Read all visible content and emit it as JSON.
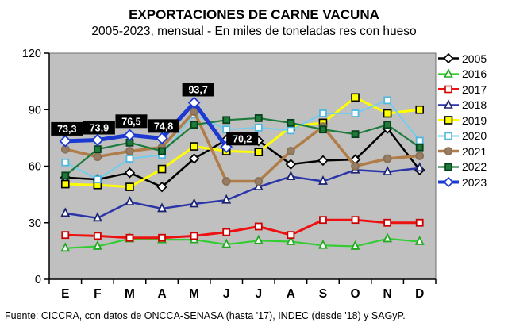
{
  "chart_data": {
    "type": "line",
    "title": "EXPORTACIONES DE CARNE VACUNA",
    "subtitle": "2005-2023, mensual - En miles de toneladas res con hueso",
    "source": "Fuente: CICCRA, con datos de ONCCA-SENASA (hasta '17), INDEC (desde '18) y SAGyP.",
    "categories": [
      "E",
      "F",
      "M",
      "A",
      "M",
      "J",
      "J",
      "A",
      "S",
      "O",
      "N",
      "D"
    ],
    "y_ticks": [
      0,
      30,
      60,
      90,
      120
    ],
    "ylim": [
      0,
      120
    ],
    "grid": false,
    "legend_position": "right",
    "plot_bg": "#c0c0c0",
    "series": [
      {
        "name": "2005",
        "color": "#000000",
        "width": 2.5,
        "marker": "diamond",
        "marker_fill": "#ffffff",
        "marker_stroke": "#000000",
        "marker_size": 4.5,
        "values": [
          54,
          53,
          56.5,
          49,
          64,
          74,
          73.5,
          61,
          63,
          63.5,
          80,
          58
        ]
      },
      {
        "name": "2016",
        "color": "#33cc33",
        "width": 2.2,
        "marker": "triangle",
        "marker_fill": "#ffffff",
        "marker_stroke": "#22aa22",
        "marker_size": 4.5,
        "values": [
          16.5,
          17.5,
          21.5,
          21,
          21,
          18.5,
          20.5,
          20,
          18,
          17.5,
          21.5,
          20
        ]
      },
      {
        "name": "2017",
        "color": "#ee1111",
        "width": 3,
        "marker": "square",
        "marker_fill": "#ffffff",
        "marker_stroke": "#cc0000",
        "marker_size": 4,
        "values": [
          23.5,
          23,
          22,
          22,
          23,
          25,
          28,
          23.5,
          31.5,
          31.5,
          30,
          30
        ]
      },
      {
        "name": "2018",
        "color": "#2b35a8",
        "width": 2.5,
        "marker": "triangle",
        "marker_fill": "#ffffff",
        "marker_stroke": "#1c2470",
        "marker_size": 4.5,
        "values": [
          35,
          32.5,
          41,
          37.5,
          40,
          42,
          49,
          54.5,
          52,
          58,
          57,
          59
        ]
      },
      {
        "name": "2019",
        "color": "#ffff00",
        "width": 3,
        "marker": "square",
        "marker_fill": "#ffff00",
        "marker_stroke": "#000000",
        "marker_size": 4.5,
        "values": [
          50.5,
          50,
          49,
          58.5,
          70.5,
          68,
          67.5,
          81,
          83,
          96.5,
          88,
          90
        ]
      },
      {
        "name": "2020",
        "color": "#74cdee",
        "width": 2,
        "marker": "square",
        "marker_fill": "#ffffff",
        "marker_stroke": "#4fb8e0",
        "marker_size": 4,
        "values": [
          62,
          53,
          64,
          66,
          87.5,
          79.5,
          80.5,
          79,
          88,
          88,
          95,
          73.5
        ]
      },
      {
        "name": "2021",
        "color": "#b07c48",
        "width": 3.5,
        "marker": "circle",
        "marker_fill": "#967d64",
        "marker_stroke": "#8a7054",
        "marker_size": 4.5,
        "values": [
          69,
          65,
          68,
          70,
          89,
          52,
          52,
          68,
          81,
          60,
          64,
          65.5
        ]
      },
      {
        "name": "2022",
        "color": "#1e7b3c",
        "width": 2.2,
        "marker": "square",
        "marker_fill": "#1e7b3c",
        "marker_stroke": "#06401c",
        "marker_size": 4,
        "values": [
          55,
          69,
          72.5,
          68,
          82,
          84.5,
          85.5,
          83,
          79.5,
          77,
          82,
          70
        ]
      },
      {
        "name": "2023",
        "color": "#1c39d2",
        "width": 5,
        "marker": "diamond",
        "marker_fill": "#ffffff",
        "marker_stroke": "#1c39d2",
        "marker_size": 5.5,
        "values": [
          73.3,
          73.9,
          76.5,
          74.8,
          93.7,
          70.2
        ],
        "labels": [
          "73,3",
          "73,9",
          "76,5",
          "74,8",
          "93,7",
          "70,2"
        ],
        "label_offsets": [
          [
            2,
            7
          ],
          [
            2,
            7
          ],
          [
            2,
            9
          ],
          [
            2,
            7
          ],
          [
            5,
            8
          ],
          [
            20,
            2
          ]
        ],
        "label_bg": "#000000",
        "label_color": "#ffffff"
      }
    ]
  }
}
